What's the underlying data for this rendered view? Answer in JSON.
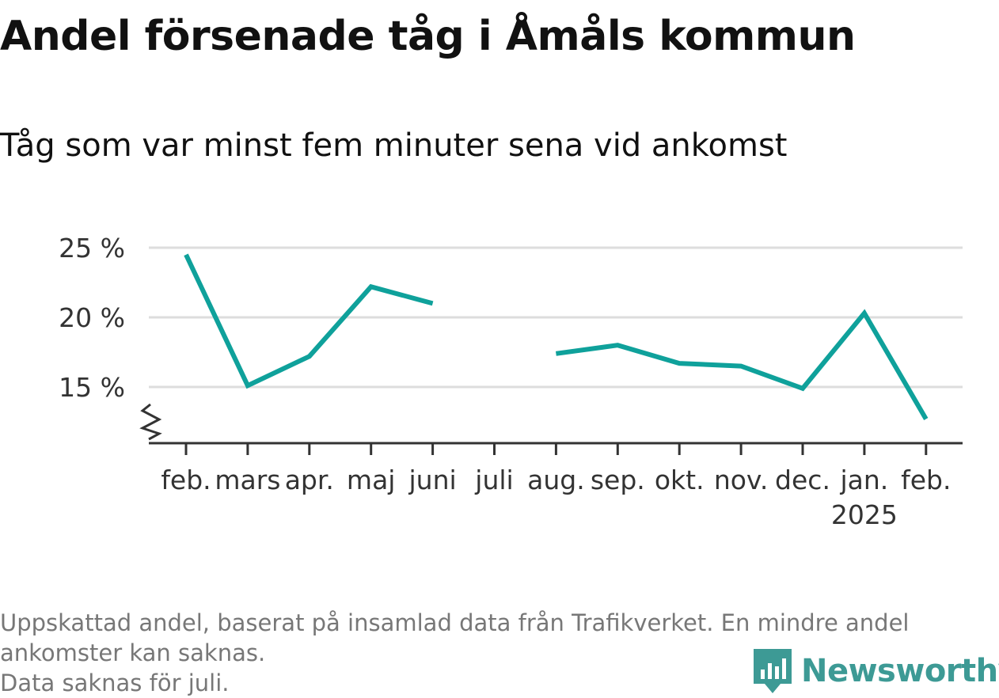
{
  "title": "Andel försenade tåg i Åmåls kommun",
  "subtitle": "Tåg som var minst fem minuter sena vid ankomst",
  "footer": {
    "line1": "Uppskattad andel, baserat på insamlad data från Trafikverket. En mindre andel",
    "line2": "ankomster kan saknas.",
    "line3": "Data saknas för juli."
  },
  "brand": {
    "name": "Newsworthy",
    "logo_icon": "newsworthy-logo-icon",
    "color": "#3d9a95"
  },
  "colors": {
    "series": "#0fa19b",
    "grid": "#dddddd",
    "axis": "#333333",
    "text": "#111111",
    "footer": "#777777"
  },
  "chart_data": {
    "type": "line",
    "categories": [
      "feb.",
      "mars",
      "apr.",
      "maj",
      "juni",
      "juli",
      "aug.",
      "sep.",
      "okt.",
      "nov.",
      "dec.",
      "jan.",
      "feb."
    ],
    "category_sublabels": [
      "",
      "",
      "",
      "",
      "",
      "",
      "",
      "",
      "",
      "",
      "",
      "2025",
      ""
    ],
    "values": [
      24.5,
      15.1,
      17.2,
      22.2,
      21.0,
      null,
      17.4,
      18.0,
      16.7,
      16.5,
      14.9,
      20.3,
      12.7
    ],
    "yticks": [
      15,
      20,
      25
    ],
    "ytick_labels": [
      "15 %",
      "20 %",
      "25 %"
    ],
    "ylim": [
      11,
      25
    ],
    "y_axis_break": true,
    "grid": true,
    "legend": "none"
  }
}
